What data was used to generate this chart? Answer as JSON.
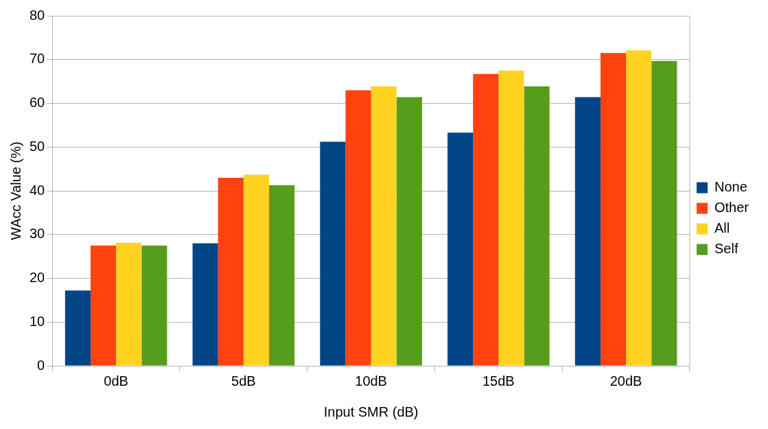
{
  "chart_data": {
    "type": "bar",
    "xlabel": "Input SMR (dB)",
    "ylabel": "WAcc Value (%)",
    "categories": [
      "0dB",
      "5dB",
      "10dB",
      "15dB",
      "20dB"
    ],
    "series": [
      {
        "name": "None",
        "color": "#004586",
        "values": [
          17.2,
          28.0,
          51.2,
          53.3,
          61.4
        ]
      },
      {
        "name": "Other",
        "color": "#ff420e",
        "values": [
          27.5,
          43.0,
          63.0,
          66.7,
          71.5
        ]
      },
      {
        "name": "All",
        "color": "#ffd320",
        "values": [
          28.1,
          43.7,
          63.9,
          67.5,
          72.1
        ]
      },
      {
        "name": "Self",
        "color": "#579d1c",
        "values": [
          27.5,
          41.3,
          61.4,
          63.9,
          69.7
        ]
      }
    ],
    "ylim": [
      0,
      80
    ],
    "yticks": [
      0,
      10,
      20,
      30,
      40,
      50,
      60,
      70,
      80
    ],
    "grid": "y",
    "legend": "right"
  }
}
